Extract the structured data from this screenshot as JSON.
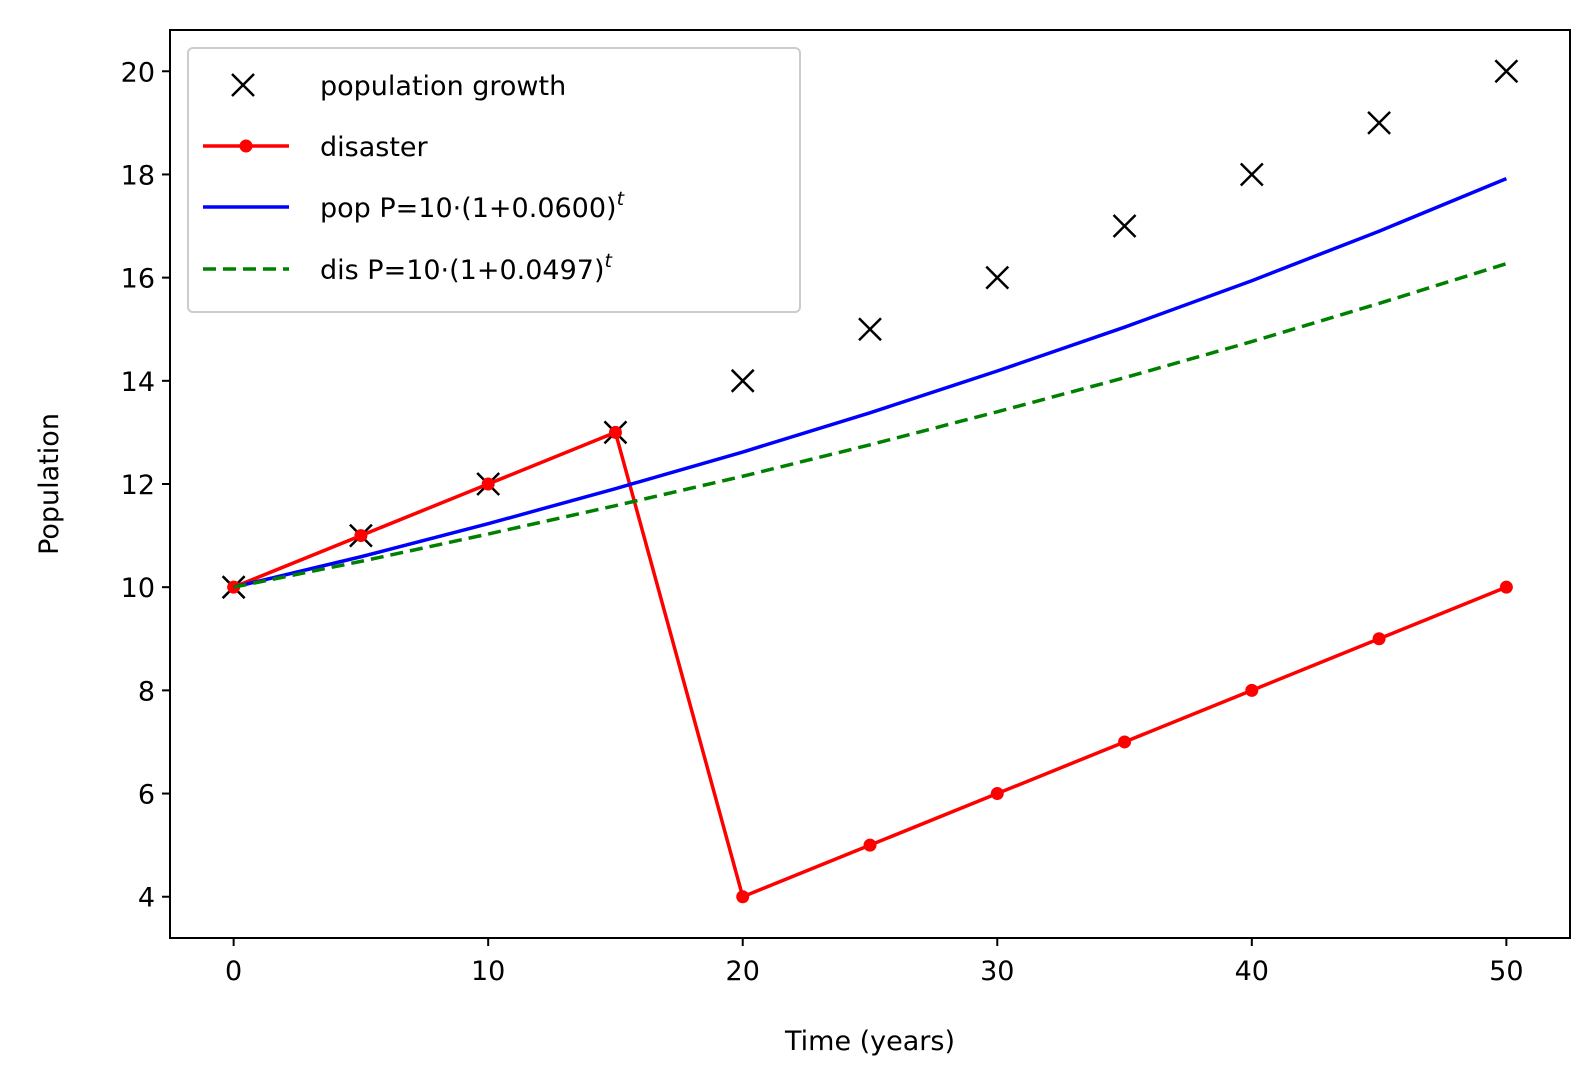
{
  "chart_data": {
    "type": "line",
    "xlabel": "Time (years)",
    "ylabel": "Population",
    "xlim": [
      -2.5,
      52.5
    ],
    "ylim": [
      3.2,
      20.8
    ],
    "xticks": [
      0,
      10,
      20,
      30,
      40,
      50
    ],
    "yticks": [
      4,
      6,
      8,
      10,
      12,
      14,
      16,
      18,
      20
    ],
    "grid": false,
    "legend_position": "upper-left",
    "series": [
      {
        "name": "population growth",
        "style": "markers-x",
        "color": "#000000",
        "x": [
          0,
          5,
          10,
          15,
          20,
          25,
          30,
          35,
          40,
          45,
          50
        ],
        "y": [
          10,
          11,
          12,
          13,
          14,
          15,
          16,
          17,
          18,
          19,
          20
        ]
      },
      {
        "name": "disaster",
        "style": "line-dots",
        "color": "#ff0000",
        "x": [
          0,
          5,
          10,
          15,
          20,
          25,
          30,
          35,
          40,
          45,
          50
        ],
        "y": [
          10,
          11,
          12,
          13,
          4,
          5,
          6,
          7,
          8,
          9,
          10
        ]
      },
      {
        "name": "pop P=10·(1+0.0600)",
        "name_sup": "t",
        "style": "solid",
        "color": "#0000ff",
        "x": [
          0,
          5,
          10,
          15,
          20,
          25,
          30,
          35,
          40,
          45,
          50
        ],
        "y": [
          10.0,
          10.59,
          11.23,
          11.91,
          12.62,
          13.38,
          14.19,
          15.04,
          15.94,
          16.9,
          17.92
        ]
      },
      {
        "name": "dis P=10·(1+0.0497)",
        "name_sup": "t",
        "style": "dashed",
        "color": "#008000",
        "x": [
          0,
          5,
          10,
          15,
          20,
          25,
          30,
          35,
          40,
          45,
          50
        ],
        "y": [
          10.0,
          10.5,
          11.03,
          11.58,
          12.15,
          12.76,
          13.4,
          14.06,
          14.76,
          15.5,
          16.27
        ]
      }
    ]
  }
}
